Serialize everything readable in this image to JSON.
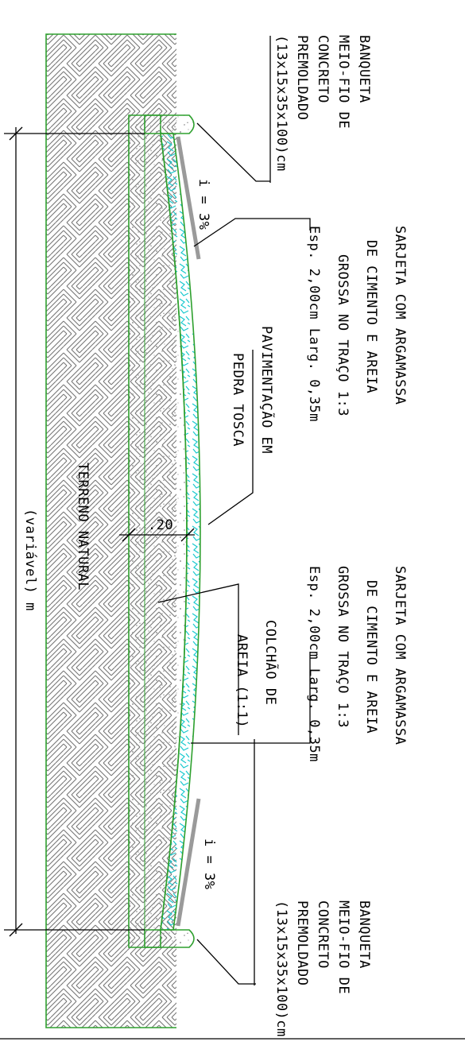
{
  "labels": {
    "banqueta_top": [
      "BANQUETA",
      "MEIO-FIO DE",
      "CONCRETO",
      "PREMOLDADO",
      "(13x15x35x100)cm"
    ],
    "sarjeta_top": [
      "SARJETA COM ARGAMASSA",
      "DE CIMENTO E AREIA",
      "GROSSA NO TRAÇO 1:3",
      "Esp. 2,00cm  Larg. 0,35m"
    ],
    "slope_top": "i = 3%",
    "pavimentacao": [
      "PAVIMENTAÇÃO EM",
      "PEDRA TOSCA"
    ],
    "dimension_20": ".20",
    "terreno": "TERRENO NATURAL",
    "variavel": "(variável) m",
    "colchao": [
      "COLCHÃO DE",
      "AREIA (1:1)"
    ],
    "sarjeta_bottom": [
      "SARJETA COM ARGAMASSA",
      "DE CIMENTO E AREIA",
      "GROSSA NO TRAÇO 1:3",
      "Esp. 2,00cm  Larg. 0,35m"
    ],
    "slope_bottom": "i = 3%",
    "banqueta_bottom": [
      "BANQUETA",
      "MEIO-FIO DE",
      "CONCRETO",
      "PREMOLDADO",
      "(13x15x35x100)cm"
    ]
  },
  "colors": {
    "outline_green": "#2ea02e",
    "stone_cyan": "#19c9cf",
    "gutter_gray": "#9a9a9a",
    "hatch": "#777777",
    "sand_dots": "#9a9a9a"
  }
}
